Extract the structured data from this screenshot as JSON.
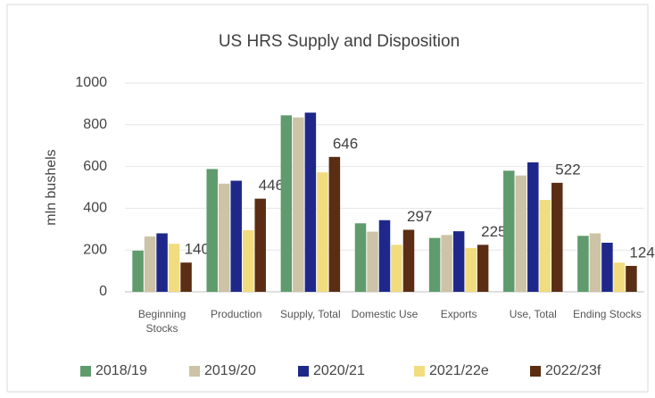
{
  "chart_data": {
    "type": "bar",
    "title": "US HRS Supply  and Disposition",
    "y_label": "mln bushels",
    "categories": [
      "Beginning Stocks",
      "Production",
      "Supply, Total",
      "Domestic Use",
      "Exports",
      "Use, Total",
      "Ending Stocks"
    ],
    "series": [
      {
        "name": "2018/19",
        "color": "#5f9b6d",
        "values": [
          197,
          588,
          845,
          328,
          258,
          580,
          268
        ]
      },
      {
        "name": "2019/20",
        "color": "#cdc3a6",
        "values": [
          265,
          518,
          835,
          288,
          272,
          557,
          280
        ]
      },
      {
        "name": "2020/21",
        "color": "#1f288a",
        "values": [
          280,
          532,
          858,
          343,
          290,
          620,
          235
        ]
      },
      {
        "name": "2021/22e",
        "color": "#f1dc7f",
        "values": [
          230,
          295,
          572,
          225,
          210,
          440,
          140
        ]
      },
      {
        "name": "2022/23f",
        "color": "#5a2d14",
        "values": [
          140,
          446,
          646,
          297,
          225,
          522,
          124
        ],
        "data_labels": true
      }
    ],
    "ylim": [
      0,
      1000
    ],
    "yticks": [
      0,
      200,
      400,
      600,
      800,
      1000
    ],
    "grid": true,
    "legend": "bottom"
  }
}
